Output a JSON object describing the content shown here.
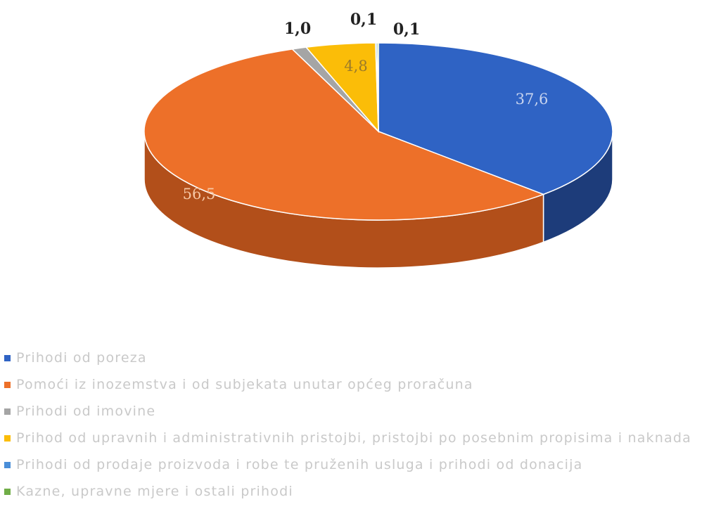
{
  "chart_data": {
    "type": "pie",
    "style": "3d",
    "legend_position": "bottom",
    "slices": [
      {
        "label": "Prihodi od poreza",
        "value": 37.6,
        "value_label": "37,6",
        "color": "#2f63c4",
        "side_color": "#1d3c7a",
        "label_color": "#c8d4ef"
      },
      {
        "label": "Pomoći iz inozemstva i od subjekata unutar općeg proračuna",
        "value": 56.5,
        "value_label": "56,5",
        "color": "#ed7029",
        "side_color": "#b24f1a",
        "label_color": "#f6c7a5"
      },
      {
        "label": "Prihodi od imovine",
        "value": 1.0,
        "value_label": "1,0",
        "color": "#a5a5a5",
        "side_color": "#7a7a7a",
        "label_color": "#222222"
      },
      {
        "label": "Prihod od upravnih i administrativnih pristojbi, pristojbi po posebnim propisima i naknada",
        "value": 4.8,
        "value_label": "4,8",
        "color": "#fbbd08",
        "side_color": "#c18f06",
        "label_color": "#9a7a2a"
      },
      {
        "label": "Prihodi od prodaje proizvoda i robe te pruženih usluga i prihodi od donacija",
        "value": 0.1,
        "value_label": "0,1",
        "color": "#4a8ed8",
        "side_color": "#2f62a0",
        "label_color": "#222222"
      },
      {
        "label": "Kazne, upravne mjere i ostali prihodi",
        "value": 0.1,
        "value_label": "0,1",
        "color": "#70ad47",
        "side_color": "#4c7b30",
        "label_color": "#222222"
      }
    ]
  }
}
